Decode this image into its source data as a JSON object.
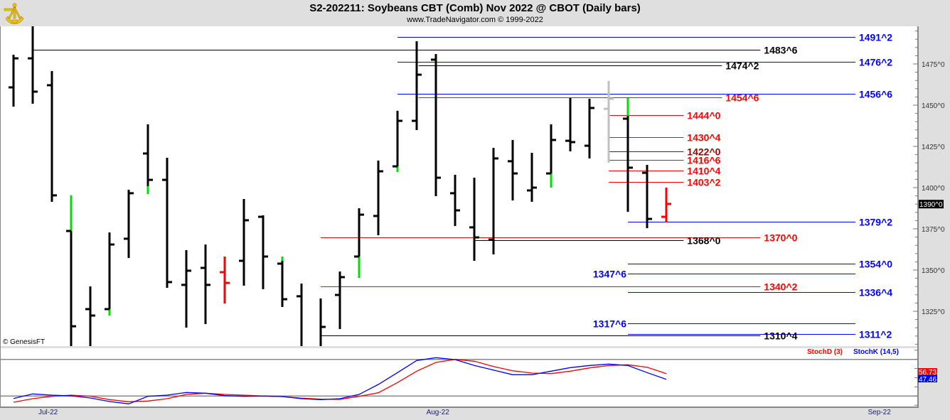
{
  "header": {
    "title": "S2-202211:  Soybeans CBT (Comb) Nov 2022 @ CBOT  (Daily bars)",
    "subtitle": "www.TradeNavigator.com © 1999-2022",
    "logo_icon": "sextant-icon"
  },
  "copyright": "© GenesisFT",
  "chart_data": {
    "type": "ohlc",
    "title": "S2-202211: Soybeans CBT (Comb) Nov 2022 @ CBOT (Daily bars)",
    "ylim": [
      1299,
      1498
    ],
    "y_ticks": [
      {
        "value": 1475,
        "label": "1475^0"
      },
      {
        "value": 1450,
        "label": "1450^0"
      },
      {
        "value": 1425,
        "label": "1425^0"
      },
      {
        "value": 1400,
        "label": "1400^0"
      },
      {
        "value": 1375,
        "label": "1375^0"
      },
      {
        "value": 1350,
        "label": "1350^0"
      },
      {
        "value": 1325,
        "label": "1325^0"
      }
    ],
    "last_price": {
      "value": 1390,
      "label": "1390^0"
    },
    "x_ticks": [
      {
        "index": 1.8,
        "label": "Jul-22"
      },
      {
        "index": 22.1,
        "label": "Aug-22"
      },
      {
        "index": 45.1,
        "label": "Sep-22"
      }
    ],
    "colors": {
      "bar": "#000000",
      "up_gap": "#00e000",
      "red": "#ff0000",
      "gray": "#c0c0c0",
      "blue": "#0000ff",
      "maroon": "#990000"
    },
    "bars": [
      {
        "o": 1460.8,
        "h": 1480.6,
        "l": 1449.1,
        "c": 1478.4
      },
      {
        "o": 1478.4,
        "h": 1498,
        "l": 1450.9,
        "c": 1458.2
      },
      {
        "o": 1462.1,
        "h": 1470.7,
        "l": 1391.4,
        "c": 1395.3
      },
      {
        "o": 1373.7,
        "h": 1395.3,
        "l": 1298,
        "c": 1315.9,
        "g": [
          1395.3,
          1373.7
        ]
      },
      {
        "o": 1326.3,
        "h": 1340.1,
        "l": 1298,
        "c": 1322.4
      },
      {
        "o": 1326.3,
        "h": 1372.8,
        "l": 1322.4,
        "c": 1365.5,
        "g": [
          1326.3,
          1322.4
        ]
      },
      {
        "o": 1369.0,
        "h": 1398.7,
        "l": 1357.3,
        "c": 1396.6
      },
      {
        "o": 1420.7,
        "h": 1438.4,
        "l": 1396.1,
        "c": 1404.7,
        "g": [
          1400.9,
          1396.1
        ]
      },
      {
        "o": 1404.7,
        "h": 1418.1,
        "l": 1339.2,
        "c": 1342.7
      },
      {
        "o": 1341.0,
        "h": 1362.1,
        "l": 1315.1,
        "c": 1349.6
      },
      {
        "o": 1351.3,
        "h": 1365.5,
        "l": 1317.2,
        "c": 1341.0
      },
      {
        "o": 1348.7,
        "h": 1358.2,
        "l": 1329.7,
        "c": 1342.2,
        "color": "red"
      },
      {
        "o": 1355.6,
        "h": 1393.1,
        "l": 1340.5,
        "c": 1380.2
      },
      {
        "o": 1382.3,
        "h": 1383.2,
        "l": 1338.4,
        "c": 1358.2
      },
      {
        "o": 1353.9,
        "h": 1358.2,
        "l": 1327.6,
        "c": 1332.3,
        "g": [
          1358.2,
          1355.6
        ]
      },
      {
        "o": 1334.1,
        "h": 1341.8,
        "l": 1298,
        "c": 1298
      },
      {
        "o": 1298,
        "h": 1332.8,
        "l": 1298,
        "c": 1315.5
      },
      {
        "o": 1334.9,
        "h": 1349.1,
        "l": 1314.2,
        "c": 1345.7
      },
      {
        "o": 1358.2,
        "h": 1387.5,
        "l": 1345.3,
        "c": 1383.6,
        "g": [
          1358.2,
          1345.3
        ]
      },
      {
        "o": 1382.8,
        "h": 1416.4,
        "l": 1371.1,
        "c": 1409.9
      },
      {
        "o": 1412.9,
        "h": 1446.6,
        "l": 1409.5,
        "c": 1440.5,
        "g": [
          1412.9,
          1409.5
        ]
      },
      {
        "o": 1440.5,
        "h": 1488.8,
        "l": 1434.9,
        "c": 1468.5
      },
      {
        "o": 1477.6,
        "h": 1481.0,
        "l": 1394.8,
        "c": 1406.0
      },
      {
        "o": 1396.6,
        "h": 1407.8,
        "l": 1376.7,
        "c": 1386.2
      },
      {
        "o": 1375.9,
        "h": 1406.0,
        "l": 1355.6,
        "c": 1369.8
      },
      {
        "o": 1368.5,
        "h": 1424.1,
        "l": 1359.5,
        "c": 1417.7
      },
      {
        "o": 1416.0,
        "h": 1428.9,
        "l": 1392.2,
        "c": 1408.6
      },
      {
        "o": 1398.3,
        "h": 1421.1,
        "l": 1391.4,
        "c": 1400.0
      },
      {
        "o": 1408.6,
        "h": 1438.4,
        "l": 1400.0,
        "c": 1428.9,
        "g": [
          1408.6,
          1400.0
        ]
      },
      {
        "o": 1428.4,
        "h": 1454.3,
        "l": 1422.0,
        "c": 1427.6
      },
      {
        "o": 1425.4,
        "h": 1453.9,
        "l": 1417.7,
        "c": 1448.3
      },
      {
        "o": 1447.8,
        "h": 1464.7,
        "l": 1415.1,
        "c": 1453.9,
        "color": "gray"
      },
      {
        "o": 1441.8,
        "h": 1454.3,
        "l": 1385.3,
        "c": 1412.1,
        "g": [
          1454.3,
          1443.5
        ]
      },
      {
        "o": 1409.0,
        "h": 1413.8,
        "l": 1375.4,
        "c": 1381.0
      },
      {
        "o": 1382.3,
        "h": 1400.0,
        "l": 1378.9,
        "c": 1390.1,
        "color": "red"
      }
    ],
    "levels": [
      {
        "label": "1491^2",
        "price": 1491.25,
        "color": "blue",
        "from": 20,
        "to": 43.85,
        "side": "right"
      },
      {
        "label": "1483^6",
        "price": 1483.75,
        "color": "black",
        "from": 1,
        "to": 38.9,
        "side": "right"
      },
      {
        "label": "1476^2",
        "price": 1476.25,
        "color": "blue",
        "from": 20,
        "to": 43.85,
        "side": "right"
      },
      {
        "label": "1474^2",
        "price": 1474.25,
        "color": "black",
        "from": 21.1,
        "to": 36.9,
        "side": "right"
      },
      {
        "label": "1456^6",
        "price": 1456.75,
        "color": "blue",
        "from": 20,
        "to": 43.85,
        "side": "right"
      },
      {
        "label": "1454^6",
        "price": 1454.75,
        "color": "red",
        "from": 21.1,
        "to": 36.9,
        "side": "right"
      },
      {
        "label": "1444^0",
        "price": 1444.0,
        "color": "red",
        "from": 31,
        "to": 34.9,
        "side": "right"
      },
      {
        "label": "1430^4",
        "price": 1430.5,
        "color": "red",
        "from": 31,
        "to": 34.9,
        "side": "right"
      },
      {
        "label": "1422^0",
        "price": 1422.0,
        "color": "maroon",
        "from": 31,
        "to": 34.9,
        "side": "right"
      },
      {
        "label": "1416^6",
        "price": 1416.75,
        "color": "red",
        "from": 31,
        "to": 34.9,
        "side": "right"
      },
      {
        "label": "1410^4",
        "price": 1410.5,
        "color": "red",
        "from": 31,
        "to": 34.9,
        "side": "right"
      },
      {
        "label": "1403^2",
        "price": 1403.25,
        "color": "red",
        "from": 31,
        "to": 34.9,
        "side": "right"
      },
      {
        "label": "1379^2",
        "price": 1379.25,
        "color": "blue",
        "from": 32,
        "to": 43.85,
        "side": "right"
      },
      {
        "label": "1370^0",
        "price": 1370.0,
        "color": "red",
        "from": 16,
        "to": 38.9,
        "side": "right"
      },
      {
        "label": "1368^0",
        "price": 1368.0,
        "color": "black",
        "from": 24,
        "to": 34.9,
        "side": "right"
      },
      {
        "label": "1354^0",
        "price": 1354.0,
        "color": "blue",
        "from": 32,
        "to": 43.85,
        "side": "right"
      },
      {
        "label": "1347^6",
        "price": 1347.75,
        "color": "blue",
        "from": 32,
        "to": 43.85,
        "side": "left"
      },
      {
        "label": "1340^2",
        "price": 1340.25,
        "color": "red",
        "from": 16,
        "to": 38.9,
        "side": "right"
      },
      {
        "label": "1336^4",
        "price": 1336.5,
        "color": "blue",
        "from": 32,
        "to": 43.85,
        "side": "right"
      },
      {
        "label": "1317^6",
        "price": 1317.75,
        "color": "blue",
        "from": 32,
        "to": 43.85,
        "side": "left"
      },
      {
        "label": "1311^2",
        "price": 1311.25,
        "color": "blue",
        "from": 32,
        "to": 43.85,
        "side": "right"
      },
      {
        "label": "1310^4",
        "price": 1310.5,
        "color": "black",
        "from": 16,
        "to": 38.9,
        "side": "right"
      }
    ],
    "stochastic": {
      "levels": [
        20,
        80
      ],
      "series": [
        {
          "name": "StochD (3)",
          "color": "red",
          "last_label": "56.73",
          "values": [
            9.9,
            15.7,
            19.5,
            21.5,
            19.8,
            14.2,
            10.7,
            11.9,
            15.7,
            22.7,
            24.6,
            22.7,
            21.5,
            20,
            19.2,
            16.5,
            14.9,
            14.5,
            19.5,
            25.4,
            42.1,
            60.7,
            75,
            80,
            77,
            68.4,
            61.4,
            57.6,
            56.7,
            60.7,
            66,
            70,
            71.2,
            67.2,
            56.73
          ]
        },
        {
          "name": "StochK (14,5)",
          "color": "blue",
          "last_label": "47.46",
          "values": [
            16,
            23.5,
            21.5,
            20.3,
            16.9,
            11,
            7.2,
            19.5,
            21.5,
            25.8,
            24.6,
            20.7,
            19.5,
            20,
            19.2,
            15.7,
            14.2,
            15.7,
            22.7,
            39,
            58.4,
            78.1,
            82.8,
            79.7,
            70,
            62.6,
            54.9,
            54.9,
            60.7,
            66.5,
            70,
            72.3,
            70,
            58.4,
            47.46
          ]
        }
      ]
    }
  }
}
